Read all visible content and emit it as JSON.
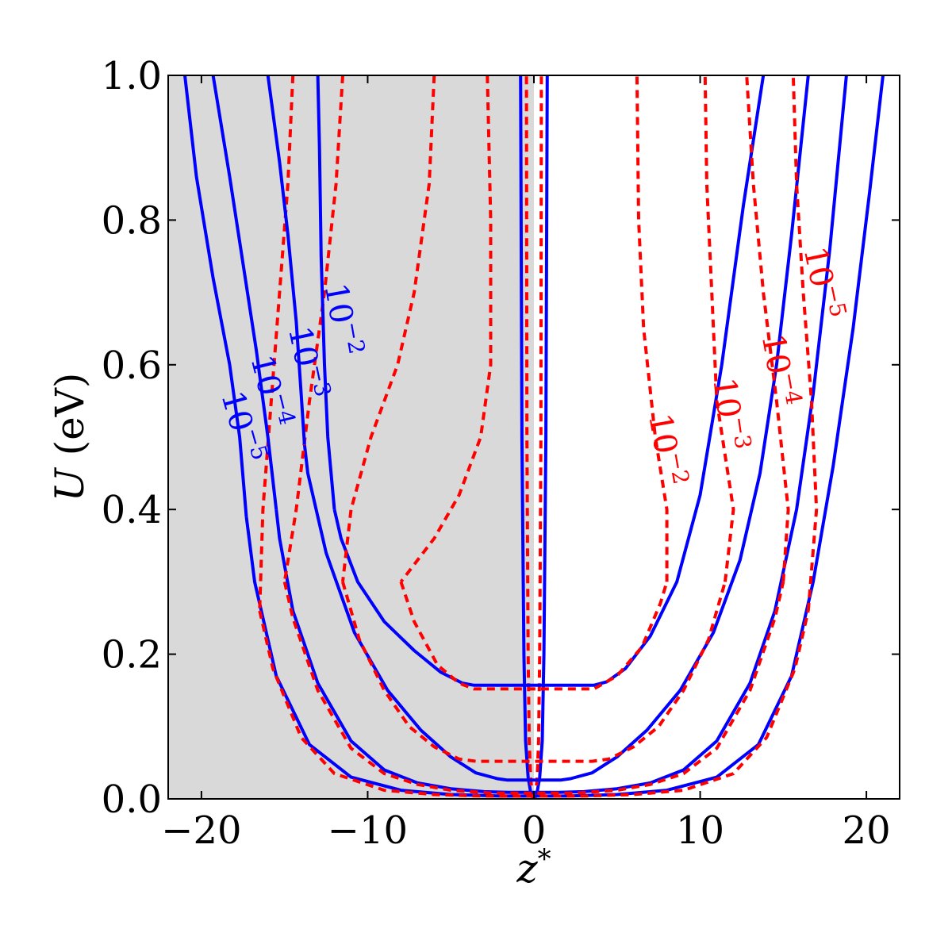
{
  "chart_data": {
    "type": "line",
    "title": "",
    "xlabel": "z*",
    "ylabel": "U (eV)",
    "xlim": [
      -22,
      22
    ],
    "ylim": [
      0.0,
      1.0
    ],
    "xticks": [
      -20,
      -10,
      0,
      10,
      20
    ],
    "xtick_labels": [
      "−20",
      "−10",
      "0",
      "10",
      "20"
    ],
    "yticks": [
      0.0,
      0.2,
      0.4,
      0.6,
      0.8,
      1.0
    ],
    "ytick_labels": [
      "0.0",
      "0.2",
      "0.4",
      "0.6",
      "0.8",
      "1.0"
    ],
    "grid": false,
    "shaded_region": {
      "x_range": [
        -22,
        0
      ],
      "color": "#d9d9d9"
    },
    "colors": {
      "solid": "#0000ff",
      "dashed": "#ff0000"
    },
    "series": [
      {
        "style": "solid",
        "color": "#0000ff",
        "level_label": "10⁻²",
        "label_base": "10",
        "label_exp": "−2",
        "left_x": [
          -12.0,
          -11.6,
          -10.6,
          -9.0,
          -7.2,
          -5.6,
          -4.3,
          -3.6
        ],
        "left_y": [
          0.4,
          0.36,
          0.3,
          0.245,
          0.205,
          0.175,
          0.16,
          0.157
        ],
        "right_x": [
          3.6,
          4.4,
          5.5,
          7.0,
          8.6,
          10.0,
          11.3,
          12.6,
          13.8
        ],
        "right_y": [
          0.157,
          0.162,
          0.18,
          0.225,
          0.3,
          0.42,
          0.6,
          0.82,
          1.0
        ]
      },
      {
        "style": "solid",
        "color": "#0000ff",
        "level_label": "10⁻³",
        "label_base": "10",
        "label_exp": "−3",
        "left_x": [
          -13.8,
          -13.6,
          -12.5,
          -10.8,
          -8.8,
          -6.8,
          -5.0,
          -3.5,
          -2.2,
          -1.6
        ],
        "left_y": [
          0.49,
          0.45,
          0.34,
          0.23,
          0.15,
          0.095,
          0.058,
          0.036,
          0.028,
          0.026
        ],
        "right_x": [
          1.6,
          2.2,
          3.5,
          5.0,
          6.8,
          8.8,
          10.8,
          12.4,
          13.6,
          14.6,
          15.5,
          16.5
        ],
        "right_y": [
          0.026,
          0.028,
          0.036,
          0.058,
          0.095,
          0.15,
          0.23,
          0.33,
          0.45,
          0.6,
          0.78,
          1.0
        ]
      },
      {
        "style": "solid",
        "color": "#0000ff",
        "level_label": "10⁻⁴",
        "label_base": "10",
        "label_exp": "−4",
        "left_x": [
          -15.5,
          -15.3,
          -14.5,
          -13.0,
          -11.0,
          -9.0,
          -7.0,
          -5.0,
          -3.0,
          -1.5
        ],
        "left_y": [
          0.4,
          0.36,
          0.26,
          0.16,
          0.08,
          0.04,
          0.022,
          0.014,
          0.01,
          0.009
        ],
        "right_x": [
          1.5,
          3.0,
          5.0,
          7.0,
          9.0,
          11.0,
          13.0,
          14.5,
          15.8,
          16.8,
          17.8,
          18.8
        ],
        "right_y": [
          0.009,
          0.01,
          0.014,
          0.022,
          0.04,
          0.08,
          0.16,
          0.26,
          0.4,
          0.56,
          0.76,
          1.0
        ]
      },
      {
        "style": "solid",
        "color": "#0000ff",
        "level_label": "10⁻⁵",
        "label_base": "10",
        "label_exp": "−5",
        "left_x": [
          -17.3,
          -16.8,
          -15.5,
          -13.5,
          -11.0,
          -8.0,
          -5.0,
          -2.0,
          -0.8
        ],
        "left_y": [
          0.39,
          0.3,
          0.17,
          0.075,
          0.03,
          0.012,
          0.006,
          0.004,
          0.004
        ],
        "right_x": [
          0.8,
          2.0,
          5.0,
          8.0,
          11.0,
          13.5,
          15.5,
          16.8,
          18.0,
          19.2,
          20.2,
          21.0
        ],
        "right_y": [
          0.004,
          0.004,
          0.006,
          0.012,
          0.03,
          0.075,
          0.17,
          0.3,
          0.46,
          0.65,
          0.84,
          1.0
        ]
      },
      {
        "style": "dashed",
        "color": "#ff0000",
        "level_label": "10⁻²",
        "label_base": "10",
        "label_exp": "−2",
        "left_x": [
          -8.0,
          -7.2,
          -5.8,
          -4.5,
          -3.6
        ],
        "left_y": [
          0.3,
          0.245,
          0.185,
          0.16,
          0.152
        ],
        "right_x": [
          3.6,
          5.0,
          6.5,
          7.6,
          8.0
        ],
        "right_y": [
          0.152,
          0.17,
          0.21,
          0.27,
          0.3
        ]
      },
      {
        "style": "dashed",
        "color": "#ff0000",
        "level_label": "10⁻³",
        "label_base": "10",
        "label_exp": "−3",
        "left_x": [
          -11.5,
          -10.5,
          -9.0,
          -7.5,
          -6.0,
          -4.5,
          -3.5
        ],
        "left_y": [
          0.3,
          0.22,
          0.15,
          0.1,
          0.072,
          0.055,
          0.052
        ],
        "right_x": [
          3.5,
          4.5,
          6.0,
          7.5,
          9.0,
          10.5,
          11.5
        ],
        "right_y": [
          0.052,
          0.055,
          0.072,
          0.1,
          0.15,
          0.22,
          0.3
        ]
      },
      {
        "style": "dashed",
        "color": "#ff0000",
        "level_label": "10⁻⁴",
        "label_base": "10",
        "label_exp": "−4",
        "left_x": [
          -15.0,
          -14.5,
          -13.0,
          -11.0,
          -9.0,
          -7.0,
          -5.0,
          -2.5
        ],
        "left_y": [
          0.3,
          0.25,
          0.15,
          0.07,
          0.035,
          0.02,
          0.012,
          0.008
        ],
        "right_x": [
          2.5,
          5.0,
          7.0,
          9.0,
          11.0,
          13.0,
          14.5,
          15.0
        ],
        "right_y": [
          0.008,
          0.012,
          0.02,
          0.035,
          0.07,
          0.15,
          0.25,
          0.3
        ]
      },
      {
        "style": "dashed",
        "color": "#ff0000",
        "level_label": "10⁻⁵",
        "label_base": "10",
        "label_exp": "−5",
        "left_x": [
          -16.5,
          -15.7,
          -14.0,
          -12.0,
          -9.0,
          -6.0,
          -3.0
        ],
        "left_y": [
          0.26,
          0.18,
          0.085,
          0.035,
          0.012,
          0.006,
          0.004
        ],
        "right_x": [
          3.0,
          6.0,
          9.0,
          12.0,
          14.0,
          15.7,
          16.5
        ],
        "right_y": [
          0.004,
          0.006,
          0.012,
          0.035,
          0.085,
          0.18,
          0.26
        ]
      }
    ],
    "dashed_upper_segments": [
      {
        "level_label": "10⁻²",
        "left_x": [
          -2.8,
          -2.6,
          -2.6,
          -3.2,
          -4.5,
          -6.0,
          -8.0
        ],
        "left_y": [
          1.0,
          0.8,
          0.6,
          0.5,
          0.42,
          0.36,
          0.3
        ],
        "right_x": [
          8.0,
          8.0,
          7.3,
          6.6,
          6.3,
          6.2
        ],
        "right_y": [
          0.3,
          0.4,
          0.5,
          0.65,
          0.8,
          1.0
        ]
      },
      {
        "level_label": "10⁻³",
        "left_x": [
          -6.0,
          -6.3,
          -7.2,
          -8.2,
          -9.8,
          -11.0,
          -11.5
        ],
        "left_y": [
          1.0,
          0.85,
          0.7,
          0.6,
          0.5,
          0.4,
          0.3
        ],
        "right_x": [
          11.5,
          12.0,
          11.0,
          10.7,
          10.4,
          10.3
        ],
        "right_y": [
          0.3,
          0.4,
          0.55,
          0.7,
          0.85,
          1.0
        ]
      },
      {
        "level_label": "10⁻⁴",
        "left_x": [
          -11.5,
          -11.9,
          -12.6,
          -13.5,
          -14.3,
          -15.0
        ],
        "left_y": [
          1.0,
          0.85,
          0.7,
          0.55,
          0.4,
          0.3
        ],
        "right_x": [
          15.0,
          15.3,
          14.6,
          13.8,
          13.2,
          12.8
        ],
        "right_y": [
          0.3,
          0.4,
          0.55,
          0.7,
          0.85,
          1.0
        ]
      },
      {
        "level_label": "10⁻⁵",
        "left_x": [
          -14.5,
          -14.8,
          -15.3,
          -15.8,
          -16.3,
          -16.5
        ],
        "left_y": [
          1.0,
          0.85,
          0.7,
          0.55,
          0.4,
          0.26
        ],
        "right_x": [
          16.5,
          17.0,
          16.7,
          16.2,
          15.8,
          15.6
        ],
        "right_y": [
          0.26,
          0.4,
          0.55,
          0.7,
          0.85,
          1.0
        ]
      }
    ],
    "solid_left_upper_segments": [
      {
        "level_label": "10⁻²",
        "x": [
          -12.0,
          -12.4,
          -12.6,
          -12.8,
          -12.9,
          -13.0
        ],
        "y": [
          0.4,
          0.5,
          0.6,
          0.75,
          0.9,
          1.0
        ]
      },
      {
        "level_label": "10⁻³",
        "x": [
          -13.8,
          -14.0,
          -14.3,
          -14.8,
          -15.3,
          -16.0
        ],
        "y": [
          0.49,
          0.56,
          0.66,
          0.78,
          0.88,
          1.0
        ]
      },
      {
        "level_label": "10⁻⁴",
        "x": [
          -15.5,
          -16.0,
          -16.7,
          -17.5,
          -18.3,
          -19.3
        ],
        "y": [
          0.4,
          0.5,
          0.62,
          0.74,
          0.86,
          1.0
        ]
      },
      {
        "level_label": "10⁻⁵",
        "x": [
          -17.3,
          -17.7,
          -18.3,
          -19.3,
          -20.3,
          -21.0
        ],
        "y": [
          0.39,
          0.5,
          0.6,
          0.72,
          0.86,
          1.0
        ]
      }
    ]
  }
}
